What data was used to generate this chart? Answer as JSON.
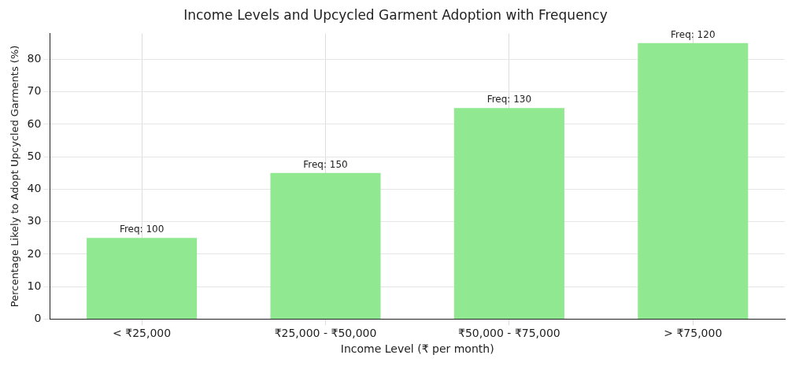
{
  "chart_data": {
    "type": "bar",
    "title": "Income Levels and Upcycled Garment Adoption with Frequency",
    "xlabel": "Income Level (₹ per month)",
    "ylabel": "Percentage Likely to Adopt Upcycled Garments (%)",
    "categories": [
      "< ₹25,000",
      "₹25,000 - ₹50,000",
      "₹50,000 - ₹75,000",
      "> ₹75,000"
    ],
    "values": [
      25,
      45,
      65,
      85
    ],
    "color": "#90e890",
    "annotations": [
      {
        "text": "Freq: 100",
        "x": "< ₹25,000",
        "y": 25
      },
      {
        "text": "Freq: 150",
        "x": "₹25,000 - ₹50,000",
        "y": 45
      },
      {
        "text": "Freq: 130",
        "x": "₹50,000 - ₹75,000",
        "y": 65
      },
      {
        "text": "Freq: 120",
        "x": "> ₹75,000",
        "y": 85
      }
    ],
    "ylim": [
      0,
      88
    ],
    "yticks": [
      0,
      10,
      20,
      30,
      40,
      50,
      60,
      70,
      80
    ],
    "grid": true
  }
}
